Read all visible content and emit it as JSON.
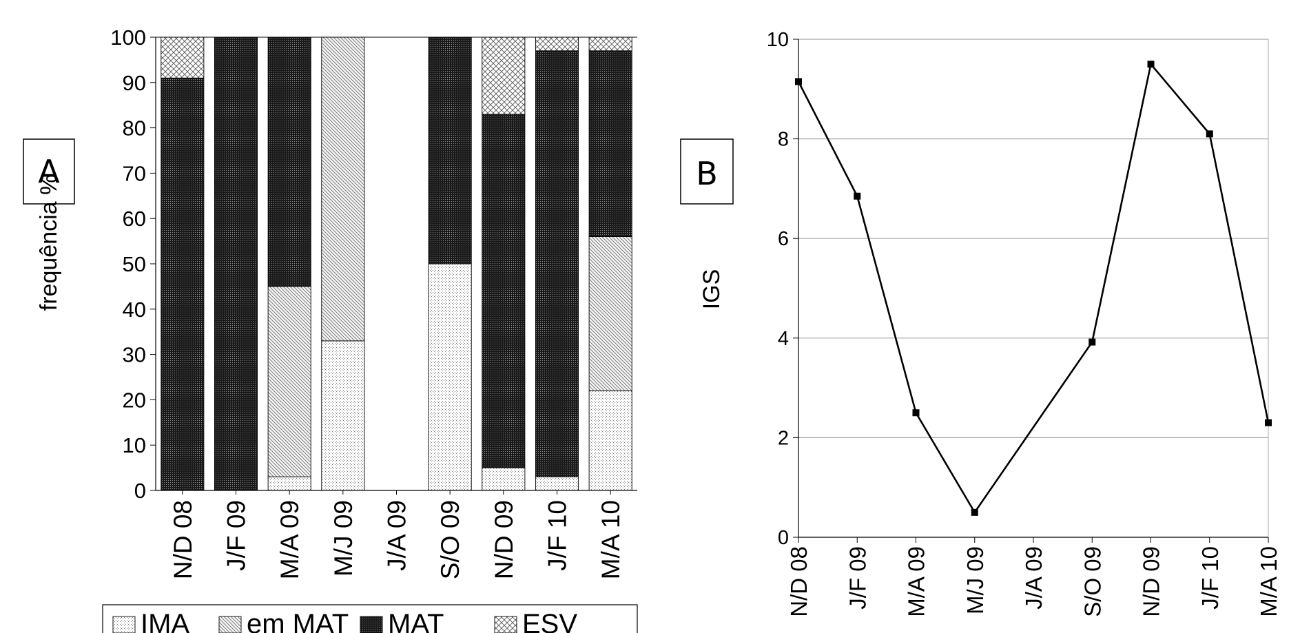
{
  "panels": {
    "a_label": "A",
    "b_label": "B"
  },
  "colors": {
    "IMA": "#f2f2f2",
    "em MAT": "#d6d6d6",
    "MAT": "#3a3a3a",
    "ESV": "#e8e8e8",
    "line": "#000000",
    "grid": "#b0b0b0"
  },
  "chart_data": [
    {
      "type": "bar",
      "stacked": true,
      "title": "",
      "xlabel": "",
      "ylabel": "frequência %",
      "ylim": [
        0,
        100
      ],
      "yticks": [
        0,
        10,
        20,
        30,
        40,
        50,
        60,
        70,
        80,
        90,
        100
      ],
      "categories": [
        "N/D 08",
        "J/F 09",
        "M/A 09",
        "M/J 09",
        "J/A 09",
        "S/O 09",
        "N/D 09",
        "J/F 10",
        "M/A 10"
      ],
      "series": [
        {
          "name": "IMA",
          "values": [
            0,
            0,
            3,
            33,
            0,
            50,
            5,
            3,
            22
          ]
        },
        {
          "name": "em MAT",
          "values": [
            0,
            0,
            42,
            67,
            0,
            0,
            0,
            0,
            34
          ]
        },
        {
          "name": "MAT",
          "values": [
            91,
            100,
            55,
            0,
            0,
            50,
            78,
            94,
            41
          ]
        },
        {
          "name": "ESV",
          "values": [
            9,
            0,
            0,
            0,
            0,
            0,
            17,
            3,
            3
          ]
        }
      ],
      "legend": [
        "IMA",
        "em MAT",
        "MAT",
        "ESV"
      ],
      "legend_position": "bottom",
      "grid": false
    },
    {
      "type": "line",
      "title": "",
      "xlabel": "",
      "ylabel": "IGS",
      "ylim": [
        0,
        10
      ],
      "yticks": [
        0,
        2,
        4,
        6,
        8,
        10
      ],
      "categories": [
        "N/D 08",
        "J/F 09",
        "M/A 09",
        "M/J 09",
        "J/A 09",
        "S/O 09",
        "N/D 09",
        "J/F 10",
        "M/A 10"
      ],
      "series": [
        {
          "name": "",
          "values": [
            9.15,
            6.85,
            2.5,
            0.5,
            null,
            3.92,
            9.5,
            8.1,
            2.3
          ]
        }
      ],
      "grid": true
    }
  ]
}
